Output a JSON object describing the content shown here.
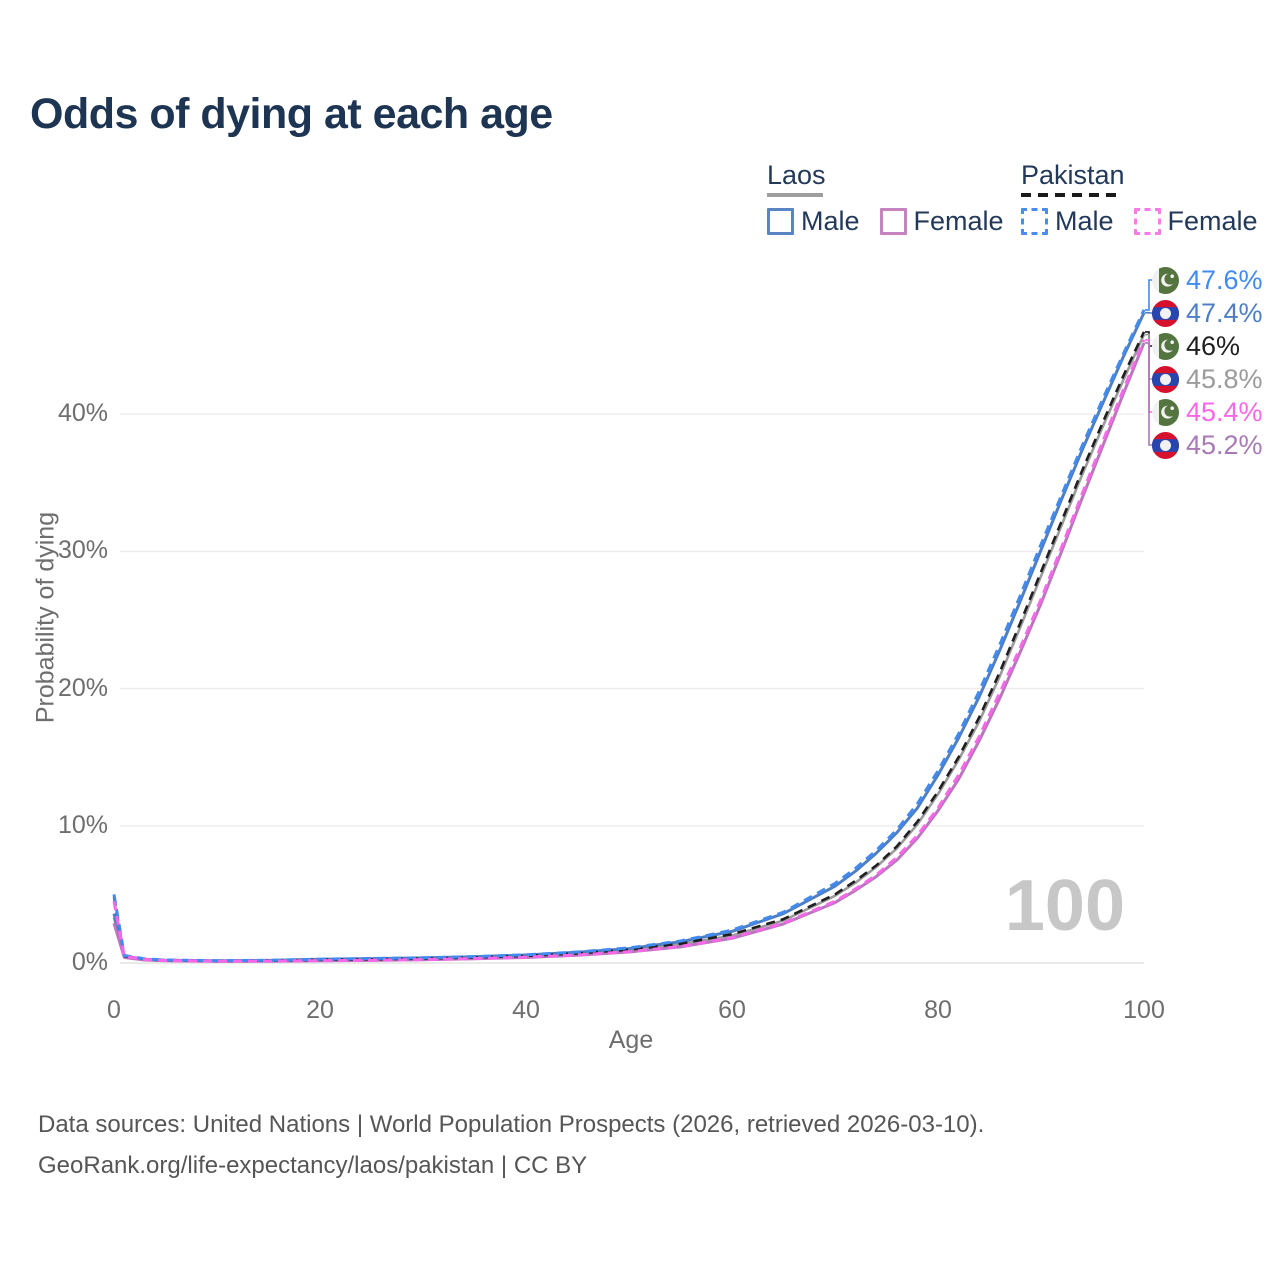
{
  "header": {
    "title": "Odds of dying at each age"
  },
  "legend": {
    "groups": [
      {
        "country": "Laos",
        "line_style": "solid",
        "underline_color": "#9e9e9e",
        "items": [
          {
            "label": "Male",
            "color": "#5b84c4",
            "dash": false
          },
          {
            "label": "Female",
            "color": "#c583bf",
            "dash": false
          }
        ]
      },
      {
        "country": "Pakistan",
        "line_style": "dashed",
        "underline_color": "#1a1a1a",
        "items": [
          {
            "label": "Male",
            "color": "#4a8cf0",
            "dash": true
          },
          {
            "label": "Female",
            "color": "#fb7ce8",
            "dash": true
          }
        ]
      }
    ]
  },
  "chart_data": {
    "type": "line",
    "title": "Odds of dying at each age",
    "xlabel": "Age",
    "ylabel": "Probability of dying",
    "unit": "percent",
    "grid": true,
    "legend_position": "top-right",
    "xlim": [
      0,
      100
    ],
    "ylim_pct": [
      0,
      51
    ],
    "hover_age_label": "100",
    "x_ticks": [
      {
        "value": 0,
        "label": "0"
      },
      {
        "value": 20,
        "label": "20"
      },
      {
        "value": 40,
        "label": "40"
      },
      {
        "value": 60,
        "label": "60"
      },
      {
        "value": 80,
        "label": "80"
      },
      {
        "value": 100,
        "label": "100"
      }
    ],
    "y_ticks": [
      {
        "value": 0,
        "label": "0%"
      },
      {
        "value": 10,
        "label": "10%"
      },
      {
        "value": 20,
        "label": "20%"
      },
      {
        "value": 30,
        "label": "30%"
      },
      {
        "value": 40,
        "label": "40%"
      }
    ],
    "ages": [
      0,
      1,
      3,
      5,
      10,
      15,
      20,
      25,
      30,
      35,
      40,
      45,
      50,
      55,
      60,
      65,
      70,
      72,
      74,
      76,
      78,
      80,
      82,
      84,
      86,
      88,
      90,
      92,
      94,
      96,
      98,
      100
    ],
    "series": [
      {
        "id": "laos-all",
        "country": "Laos",
        "sex": "All",
        "color": "#9b9b9b",
        "dash": null,
        "width": 2.6,
        "values": [
          3.3,
          0.45,
          0.25,
          0.18,
          0.14,
          0.16,
          0.22,
          0.26,
          0.31,
          0.39,
          0.5,
          0.68,
          0.94,
          1.37,
          2.0,
          3.1,
          4.9,
          5.85,
          7.0,
          8.35,
          10.1,
          12.3,
          14.8,
          17.6,
          20.9,
          24.5,
          28.2,
          31.9,
          35.6,
          39.1,
          42.5,
          45.8
        ]
      },
      {
        "id": "laos-male",
        "country": "Laos",
        "sex": "Male",
        "color": "#4e7fc4",
        "dash": null,
        "width": 3,
        "values": [
          3.6,
          0.5,
          0.28,
          0.2,
          0.16,
          0.19,
          0.27,
          0.32,
          0.37,
          0.46,
          0.58,
          0.78,
          1.05,
          1.55,
          2.3,
          3.6,
          5.6,
          6.7,
          8.0,
          9.5,
          11.3,
          13.7,
          16.4,
          19.4,
          22.8,
          26.4,
          30.1,
          33.8,
          37.4,
          40.8,
          44.2,
          47.4
        ]
      },
      {
        "id": "laos-female",
        "country": "Laos",
        "sex": "Female",
        "color": "#bb74be",
        "dash": null,
        "width": 3,
        "values": [
          2.9,
          0.4,
          0.22,
          0.16,
          0.12,
          0.13,
          0.16,
          0.19,
          0.24,
          0.31,
          0.4,
          0.56,
          0.8,
          1.17,
          1.8,
          2.85,
          4.4,
          5.3,
          6.3,
          7.5,
          9.1,
          11.1,
          13.4,
          16.2,
          19.3,
          22.7,
          26.2,
          30.0,
          33.9,
          37.7,
          41.5,
          45.2
        ]
      },
      {
        "id": "pakistan-all",
        "country": "Pakistan",
        "sex": "All",
        "color": "#1f1f1f",
        "dash": "9 6",
        "width": 2.6,
        "values": [
          4.8,
          0.5,
          0.28,
          0.2,
          0.15,
          0.17,
          0.23,
          0.27,
          0.32,
          0.4,
          0.52,
          0.7,
          0.97,
          1.4,
          2.1,
          3.2,
          5.0,
          6.0,
          7.1,
          8.5,
          10.3,
          12.5,
          15.0,
          17.9,
          21.2,
          24.8,
          28.5,
          32.2,
          35.9,
          39.4,
          42.8,
          46.0
        ]
      },
      {
        "id": "pakistan-male",
        "country": "Pakistan",
        "sex": "Male",
        "color": "#418af0",
        "dash": "9 6",
        "width": 3,
        "values": [
          5.0,
          0.55,
          0.3,
          0.22,
          0.17,
          0.2,
          0.28,
          0.33,
          0.38,
          0.47,
          0.6,
          0.8,
          1.1,
          1.6,
          2.4,
          3.7,
          5.8,
          6.9,
          8.2,
          9.7,
          11.6,
          14.0,
          16.7,
          19.8,
          23.2,
          26.8,
          30.5,
          34.1,
          37.7,
          41.1,
          44.4,
          47.6
        ]
      },
      {
        "id": "pakistan-female",
        "country": "Pakistan",
        "sex": "Female",
        "color": "#f767e9",
        "dash": "9 6",
        "width": 3,
        "values": [
          4.5,
          0.48,
          0.26,
          0.18,
          0.13,
          0.14,
          0.17,
          0.2,
          0.25,
          0.32,
          0.42,
          0.58,
          0.82,
          1.2,
          1.85,
          2.9,
          4.5,
          5.4,
          6.4,
          7.7,
          9.3,
          11.3,
          13.7,
          16.5,
          19.7,
          23.0,
          26.5,
          30.3,
          34.2,
          38.0,
          41.8,
          45.4
        ]
      }
    ],
    "end_labels": [
      {
        "text": "47.6%",
        "color": "#418af0",
        "flag": "pakistan",
        "series_id": "pakistan-male"
      },
      {
        "text": "47.4%",
        "color": "#4e7fc4",
        "flag": "laos",
        "series_id": "laos-male"
      },
      {
        "text": "46%",
        "color": "#1f1f1f",
        "flag": "pakistan",
        "series_id": "pakistan-all"
      },
      {
        "text": "45.8%",
        "color": "#9b9b9b",
        "flag": "laos",
        "series_id": "laos-all"
      },
      {
        "text": "45.4%",
        "color": "#f767e9",
        "flag": "pakistan",
        "series_id": "pakistan-female"
      },
      {
        "text": "45.2%",
        "color": "#a87ab5",
        "flag": "laos",
        "series_id": "laos-female"
      }
    ]
  },
  "flags": {
    "pakistan": {
      "green": "#547440",
      "white": "#f1f1f1"
    },
    "laos": {
      "red": "#d6112d",
      "blue": "#2746b0",
      "white": "#f1f1f1"
    }
  },
  "footer": {
    "line1": "Data sources: United Nations | World Population Prospects (2026, retrieved 2026-03-10).",
    "line2": "GeoRank.org/life-expectancy/laos/pakistan | CC BY"
  }
}
